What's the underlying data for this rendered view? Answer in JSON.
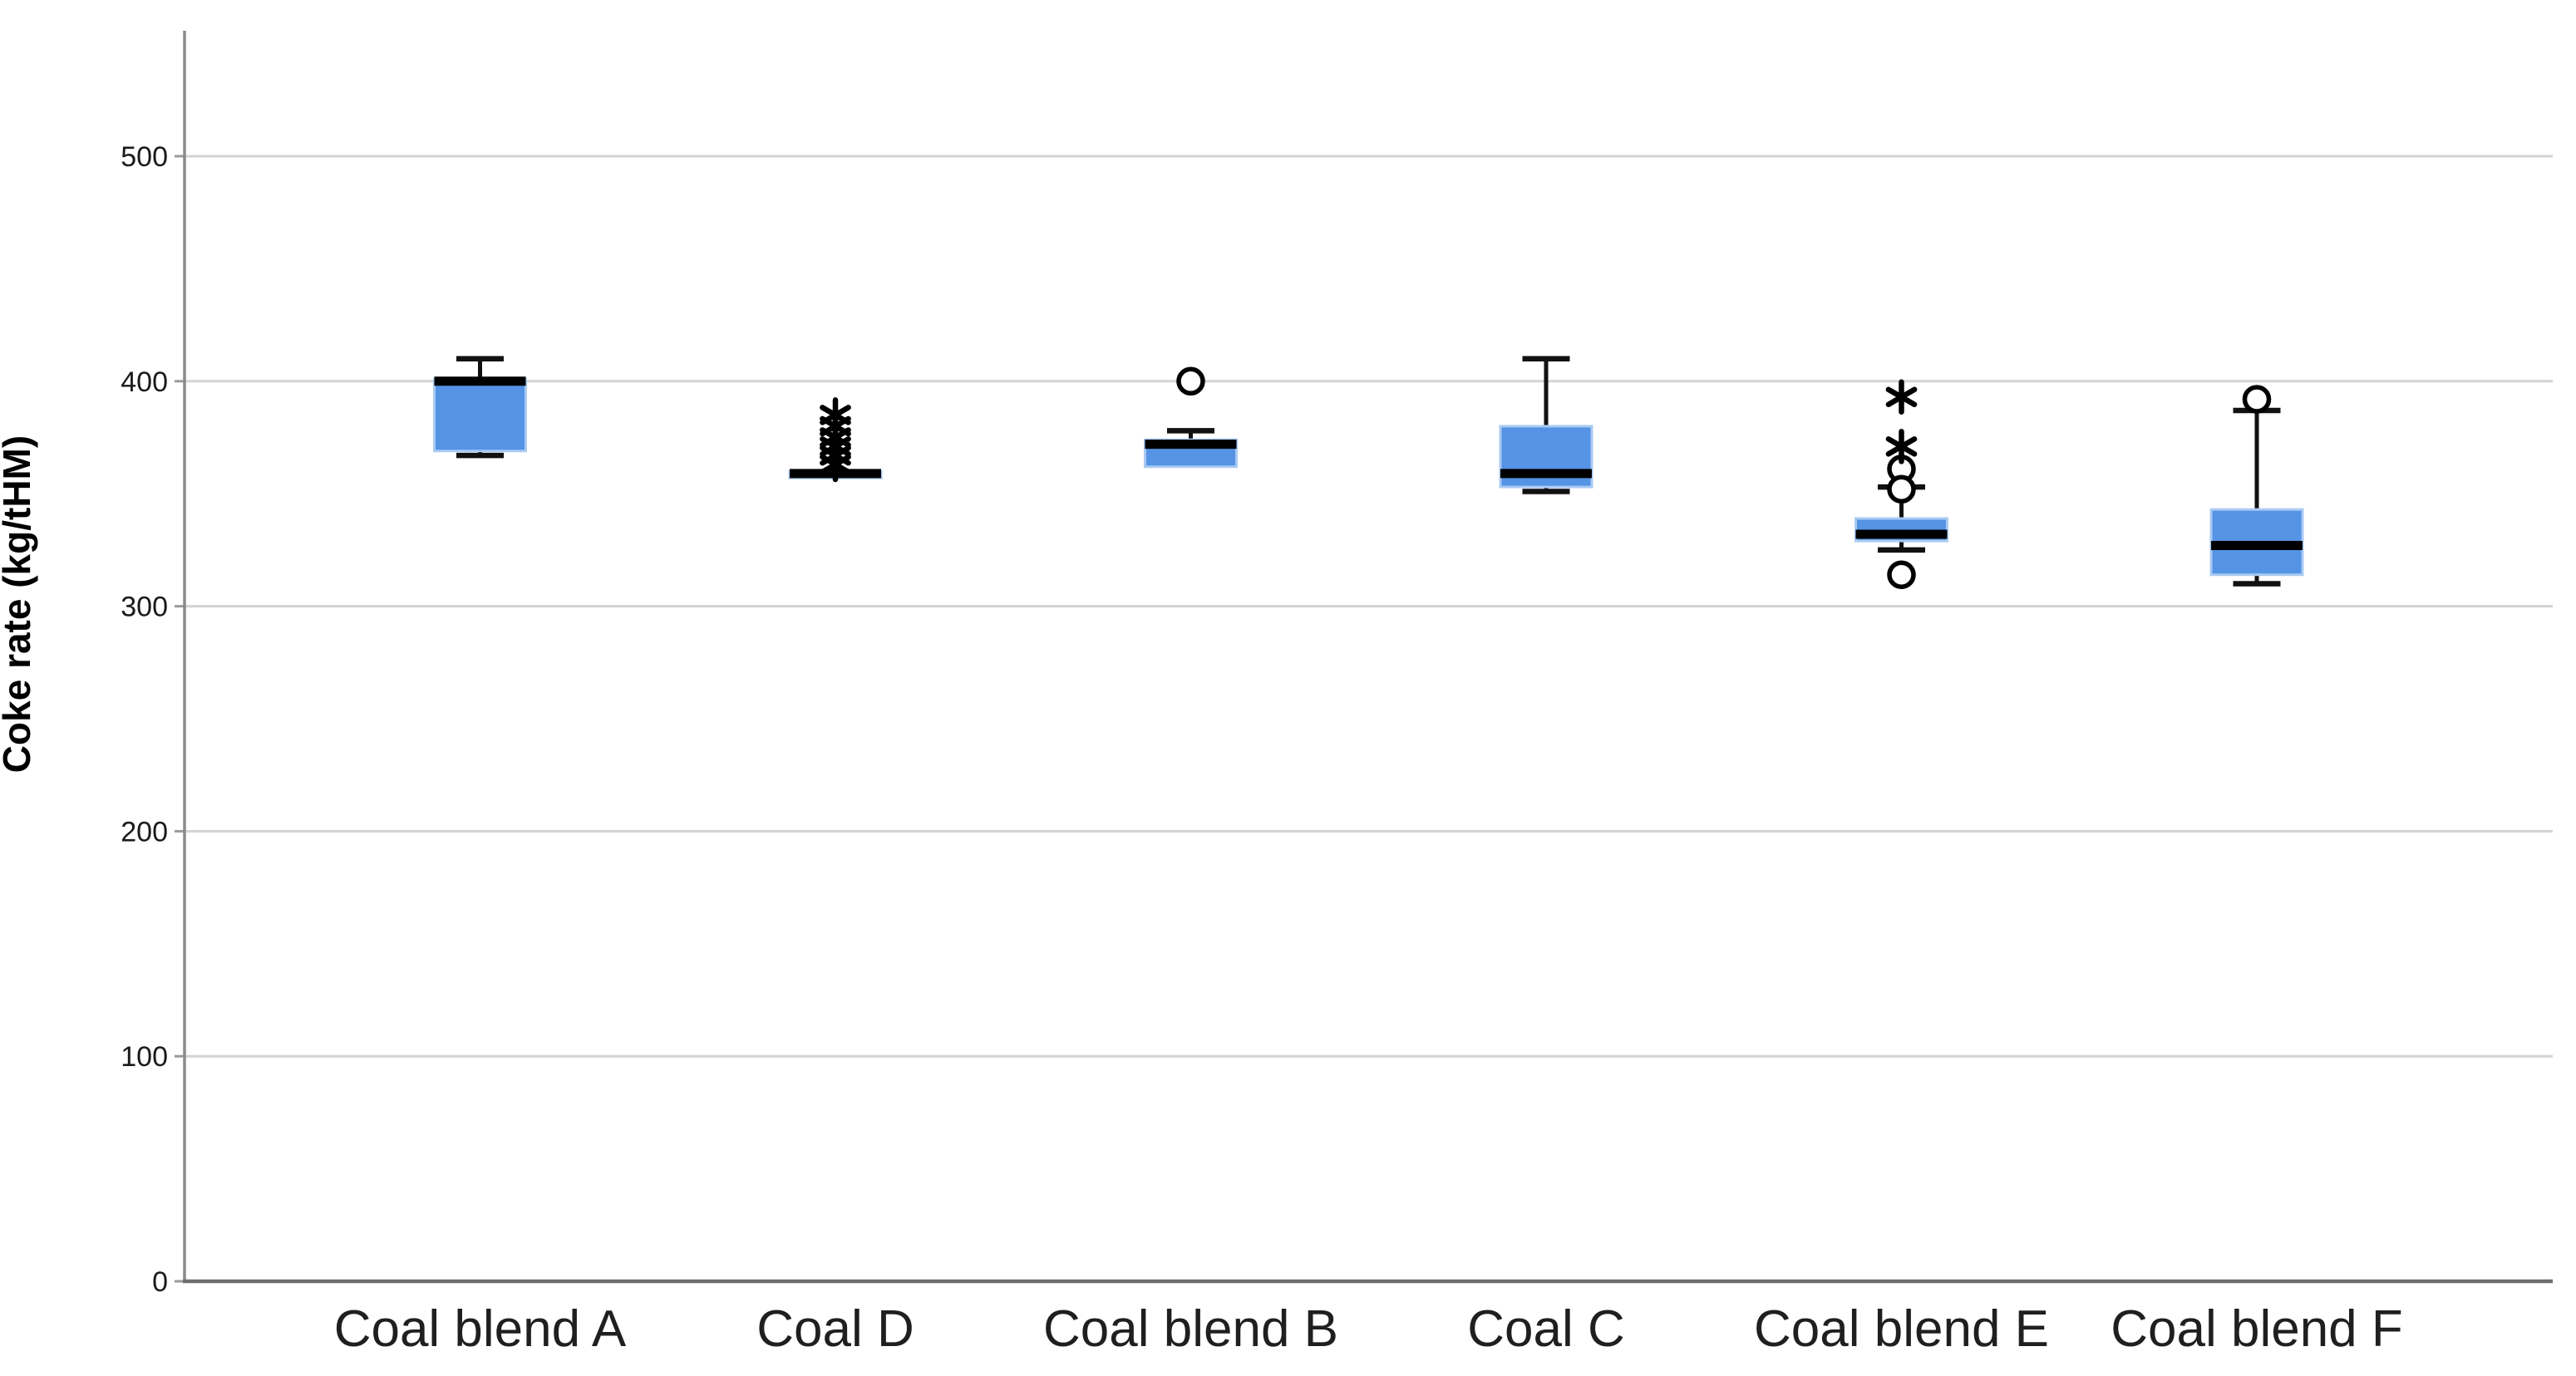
{
  "chart_data": {
    "type": "boxplot",
    "title": "",
    "ylabel": "Coke rate (kg/tHM)",
    "xlabel": "",
    "ylim": [
      0,
      555
    ],
    "yticks": [
      0,
      100,
      200,
      300,
      400,
      500
    ],
    "grid": "horizontal",
    "legend": "none",
    "categories": [
      "Coal blend A",
      "Coal D",
      "Coal blend B",
      "Coal C",
      "Coal blend E",
      "Coal blend F"
    ],
    "series": [
      {
        "category": "Coal blend A",
        "whisker_low": 367,
        "q1": 369,
        "median": 400,
        "q3": 401,
        "whisker_high": 410,
        "outliers": [],
        "extremes": []
      },
      {
        "category": "Coal D",
        "whisker_low": 357,
        "q1": 357,
        "median": 359,
        "q3": 360,
        "whisker_high": 360,
        "outliers": [],
        "extremes": [
          363,
          367,
          371,
          375,
          380,
          385
        ]
      },
      {
        "category": "Coal blend B",
        "whisker_low": 361,
        "q1": 362,
        "median": 372,
        "q3": 374,
        "whisker_high": 378,
        "outliers": [
          400
        ],
        "extremes": []
      },
      {
        "category": "Coal C",
        "whisker_low": 351,
        "q1": 353,
        "median": 359,
        "q3": 380,
        "whisker_high": 410,
        "outliers": [],
        "extremes": []
      },
      {
        "category": "Coal blend E",
        "whisker_low": 325,
        "q1": 329,
        "median": 332,
        "q3": 339,
        "whisker_high": 353,
        "outliers": [
          361,
          352,
          314
        ],
        "extremes": [
          393,
          371
        ]
      },
      {
        "category": "Coal blend F",
        "whisker_low": 310,
        "q1": 314,
        "median": 327,
        "q3": 343,
        "whisker_high": 387,
        "outliers": [
          392
        ],
        "extremes": []
      }
    ],
    "colors": {
      "box_fill": "#5593E4",
      "box_border": "#A9CAF2",
      "median": "#000000",
      "whisker": "#111111",
      "outlier_stroke": "#000000",
      "grid": "#D3D3D3",
      "axis": "#6E6E6E",
      "tick_label": "#1A1A1A",
      "category_label": "#1F1F1F"
    }
  }
}
